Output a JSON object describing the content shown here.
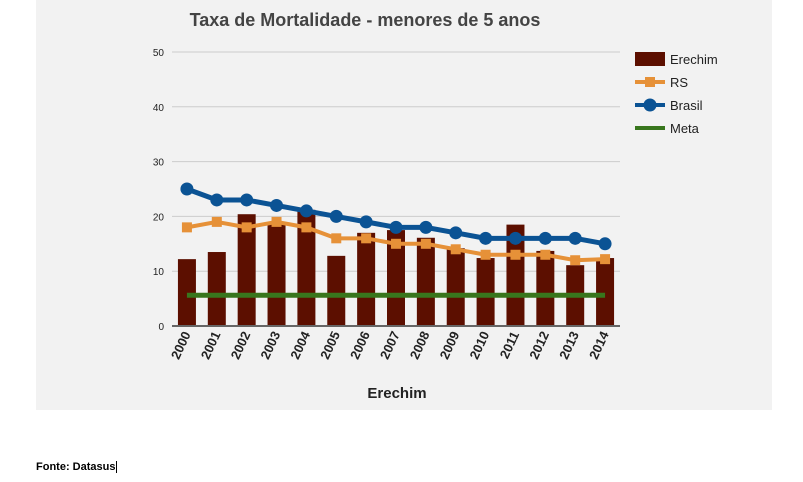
{
  "chart_data": {
    "type": "bar",
    "title": "Taxa de Mortalidade - menores de 5 anos",
    "xlabel": "Erechim",
    "ylabel": "",
    "ylim": [
      0,
      50
    ],
    "yticks": [
      0,
      10,
      20,
      30,
      40,
      50
    ],
    "grid": true,
    "legend_placement": "right",
    "categories": [
      "2000",
      "2001",
      "2002",
      "2003",
      "2004",
      "2005",
      "2006",
      "2007",
      "2008",
      "2009",
      "2010",
      "2011",
      "2012",
      "2013",
      "2014"
    ],
    "series": [
      {
        "name": "Erechim",
        "kind": "bar",
        "color": "#5c0f00",
        "values": [
          12.2,
          13.5,
          20.4,
          19.0,
          21.2,
          12.8,
          17.0,
          17.5,
          16.1,
          14.2,
          12.4,
          18.5,
          13.7,
          11.1,
          12.4
        ]
      },
      {
        "name": "RS",
        "kind": "line",
        "marker": "square",
        "color": "#e69138",
        "values": [
          18,
          19,
          18,
          19,
          18,
          16,
          16,
          15,
          15,
          14,
          13,
          13,
          13,
          12,
          12.2
        ]
      },
      {
        "name": "Brasil",
        "kind": "line",
        "marker": "circle",
        "color": "#0b5394",
        "values": [
          25,
          23,
          23,
          22,
          21,
          20,
          19,
          18,
          18,
          17,
          16,
          16,
          16,
          16,
          15
        ]
      },
      {
        "name": "Meta",
        "kind": "line",
        "marker": "none",
        "color": "#38761d",
        "values": [
          5.6,
          5.6,
          5.6,
          5.6,
          5.6,
          5.6,
          5.6,
          5.6,
          5.6,
          5.6,
          5.6,
          5.6,
          5.6,
          5.6,
          5.6
        ]
      }
    ]
  },
  "footer": {
    "source": "Fonte: Datasus"
  }
}
